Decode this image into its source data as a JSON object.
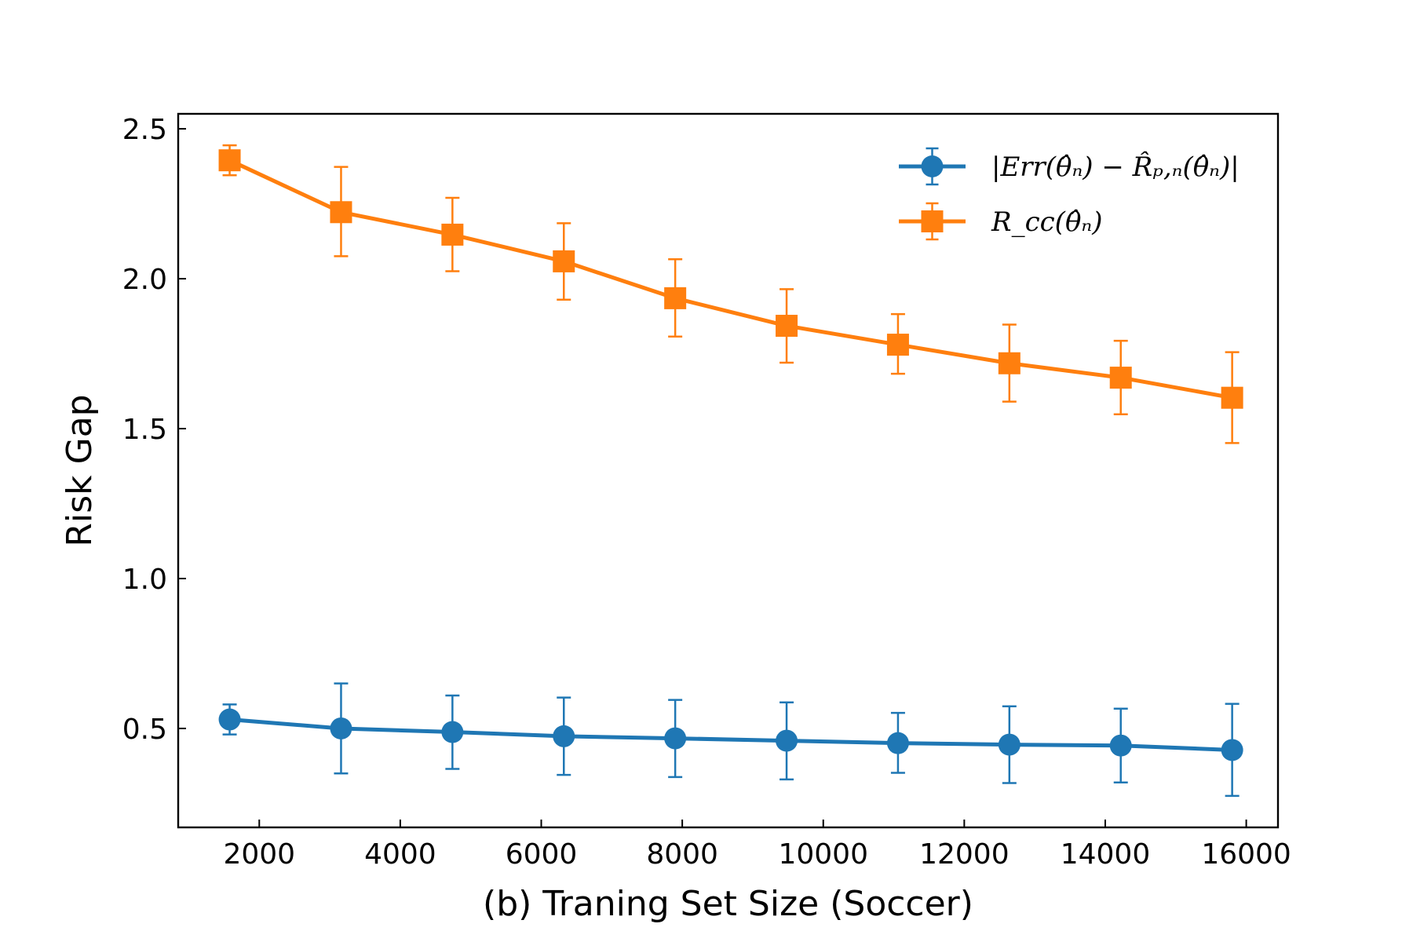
{
  "chart_data": {
    "type": "line",
    "xlabel": "(b) Traning Set Size (Soccer)",
    "ylabel": "Risk Gap",
    "xlim": [
      850,
      16450
    ],
    "ylim": [
      0.17,
      2.55
    ],
    "xticks": [
      2000,
      4000,
      6000,
      8000,
      10000,
      12000,
      14000,
      16000
    ],
    "yticks": [
      0.5,
      1.0,
      1.5,
      2.0,
      2.5
    ],
    "xtick_labels": [
      "2000",
      "4000",
      "6000",
      "8000",
      "10000",
      "12000",
      "14000",
      "16000"
    ],
    "ytick_labels": [
      "0.5",
      "1.0",
      "1.5",
      "2.0",
      "2.5"
    ],
    "grid": false,
    "legend_position": "top-right",
    "x": [
      1580,
      3160,
      4740,
      6320,
      7900,
      9480,
      11060,
      12640,
      14220,
      15800
    ],
    "series": [
      {
        "name": "|Err(θ̂ₙ) − R̂ₚ,ₙ(θ̂ₙ)|",
        "color": "#1f77b4",
        "marker": "circle",
        "values": [
          0.53,
          0.5,
          0.488,
          0.474,
          0.467,
          0.459,
          0.451,
          0.446,
          0.443,
          0.428
        ],
        "err_low": [
          0.48,
          0.35,
          0.365,
          0.345,
          0.338,
          0.33,
          0.352,
          0.318,
          0.32,
          0.275
        ],
        "err_high": [
          0.58,
          0.65,
          0.61,
          0.603,
          0.595,
          0.587,
          0.552,
          0.574,
          0.566,
          0.582
        ]
      },
      {
        "name": "R_cc(θ̂ₙ)",
        "color": "#ff7f0e",
        "marker": "square",
        "values": [
          2.395,
          2.222,
          2.147,
          2.058,
          1.935,
          1.843,
          1.78,
          1.718,
          1.67,
          1.603
        ],
        "err_low": [
          2.345,
          2.075,
          2.025,
          1.93,
          1.807,
          1.72,
          1.683,
          1.59,
          1.548,
          1.452
        ],
        "err_high": [
          2.445,
          2.373,
          2.27,
          2.185,
          2.065,
          1.965,
          1.882,
          1.847,
          1.793,
          1.755
        ]
      }
    ]
  }
}
